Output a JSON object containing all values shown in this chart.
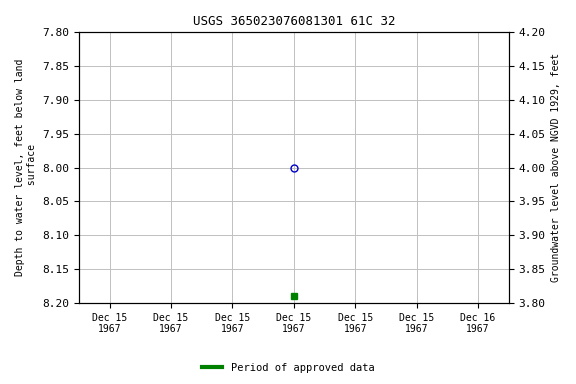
{
  "title": "USGS 365023076081301 61C 32",
  "ylabel_left": "Depth to water level, feet below land\n surface",
  "ylabel_right": "Groundwater level above NGVD 1929, feet",
  "ylim_left": [
    7.8,
    8.2
  ],
  "ylim_right": [
    3.8,
    4.2
  ],
  "yticks_left": [
    7.8,
    7.85,
    7.9,
    7.95,
    8.0,
    8.05,
    8.1,
    8.15,
    8.2
  ],
  "yticks_right": [
    3.8,
    3.85,
    3.9,
    3.95,
    4.0,
    4.05,
    4.1,
    4.15,
    4.2
  ],
  "data_point_depth": 8.0,
  "data_point_color": "#0000cc",
  "approved_point_depth": 8.19,
  "approved_point_color": "#008000",
  "grid_color": "#c0c0c0",
  "bg_color": "#ffffff",
  "legend_label": "Period of approved data",
  "legend_color": "#008000",
  "tick_labels": [
    "Dec 15\n1967",
    "Dec 15\n1967",
    "Dec 15\n1967",
    "Dec 15\n1967",
    "Dec 15\n1967",
    "Dec 15\n1967",
    "Dec 16\n1967"
  ],
  "data_point_tick_index": 3,
  "approved_point_tick_index": 3,
  "num_ticks": 7,
  "title_fontsize": 9,
  "tick_fontsize": 7,
  "ylabel_fontsize": 7
}
